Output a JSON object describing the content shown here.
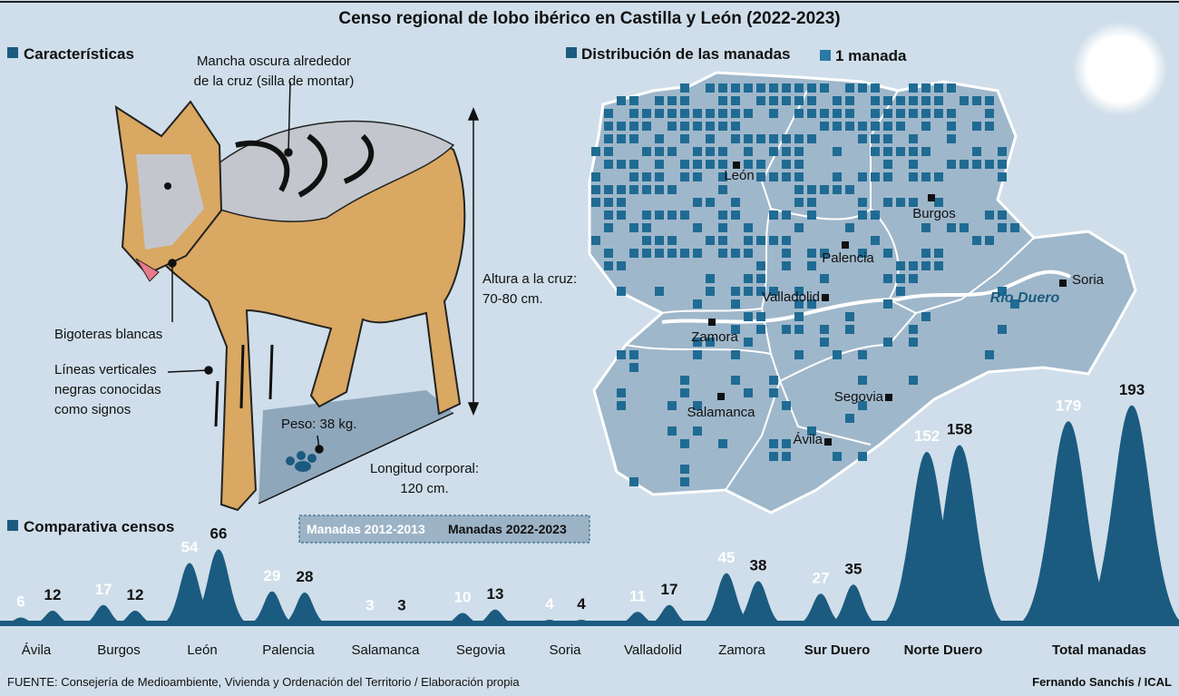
{
  "title": "Censo regional de lobo ibérico en Castilla y León (2022-2023)",
  "characteristics": {
    "heading": "Características",
    "saddle": [
      "Mancha oscura alrededor",
      "de la cruz (silla de montar)"
    ],
    "whiskers": "Bigoteras blancas",
    "signs": [
      "Líneas verticales",
      "negras conocidas",
      "como signos"
    ],
    "height": [
      "Altura a la cruz:",
      "70-80 cm."
    ],
    "weight": "Peso: 38 kg.",
    "length": [
      "Longitud corporal:",
      "120 cm."
    ]
  },
  "map": {
    "heading": "Distribución de las manadas",
    "legend": "1 manada",
    "river": "Río Duero",
    "cities": [
      "León",
      "Burgos",
      "Palencia",
      "Valladolid",
      "Zamora",
      "Salamanca",
      "Segovia",
      "Ávila",
      "Soria"
    ]
  },
  "chart_data": {
    "type": "peak",
    "title": "Comparativa censos",
    "categories": [
      "Ávila",
      "Burgos",
      "León",
      "Palencia",
      "Salamanca",
      "Segovia",
      "Soria",
      "Valladolid",
      "Zamora",
      "Sur Duero",
      "Norte Duero",
      "Total manadas"
    ],
    "peak_color": "#1b5b80",
    "series": [
      {
        "name": "Manadas 2012-2013",
        "color": "#ffffff",
        "values": [
          6,
          17,
          54,
          29,
          3,
          10,
          4,
          11,
          45,
          27,
          152,
          179
        ]
      },
      {
        "name": "Manadas 2022-2023",
        "color": "#111111",
        "values": [
          12,
          12,
          66,
          28,
          3,
          13,
          4,
          17,
          38,
          35,
          158,
          193
        ]
      }
    ]
  },
  "footer": {
    "source": "FUENTE: Consejería de Medioambiente, Vivienda y Ordenación del Territorio / Elaboración propia",
    "author": "Fernando Sanchís / ICAL"
  }
}
